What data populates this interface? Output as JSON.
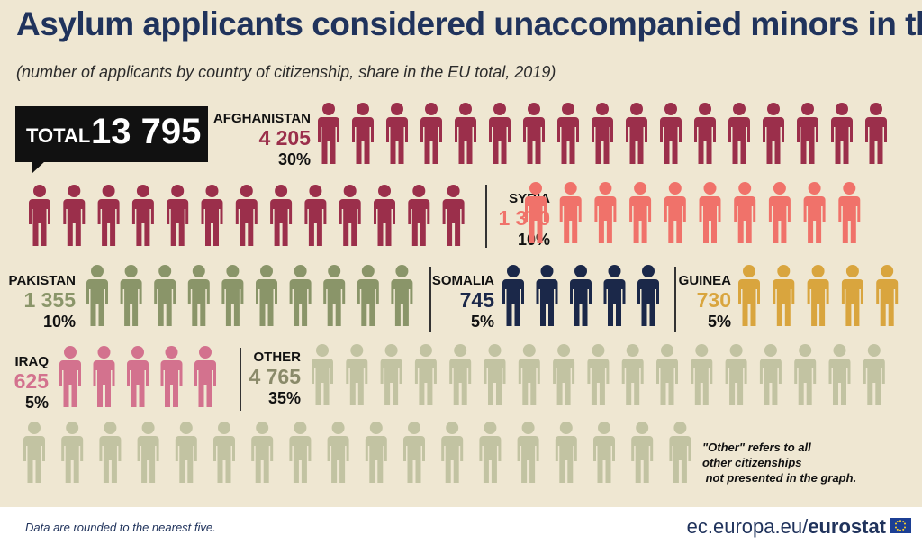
{
  "title": "Asylum applicants considered unaccompanied minors in the EU",
  "subtitle": "(number of applicants by country of citizenship, share in the EU total, 2019)",
  "total": {
    "label": "TOTAL",
    "value": "13 795"
  },
  "footnote": "\"Other\" refers to all\nother citizenships\n not presented in the graph.",
  "footer": {
    "note": "Data are rounded to the nearest five.",
    "source_prefix": "ec.europa.eu/",
    "source_brand": "eurostat"
  },
  "chart_data": {
    "type": "pictogram",
    "title": "Asylum applicants considered unaccompanied minors in the EU",
    "subtitle": "(number of applicants by country of citizenship, share in the EU total, 2019)",
    "total": 13795,
    "categories": [
      "AFGHANISTAN",
      "SYRIA",
      "PAKISTAN",
      "SOMALIA",
      "GUINEA",
      "IRAQ",
      "OTHER"
    ],
    "values": [
      4205,
      1370,
      1355,
      745,
      730,
      625,
      4765
    ],
    "value_labels": [
      "4 205",
      "1 370",
      "1 355",
      "745",
      "730",
      "625",
      "4 765"
    ],
    "shares": [
      "30%",
      "10%",
      "10%",
      "5%",
      "5%",
      "5%",
      "35%"
    ],
    "icon_counts": [
      30,
      10,
      10,
      5,
      5,
      5,
      35
    ],
    "colors": [
      "#9b2f4b",
      "#f0726a",
      "#8a9569",
      "#1b2849",
      "#d9a53e",
      "#d3728e",
      "#c2c3a2"
    ],
    "note": "Data are rounded to the nearest five."
  }
}
